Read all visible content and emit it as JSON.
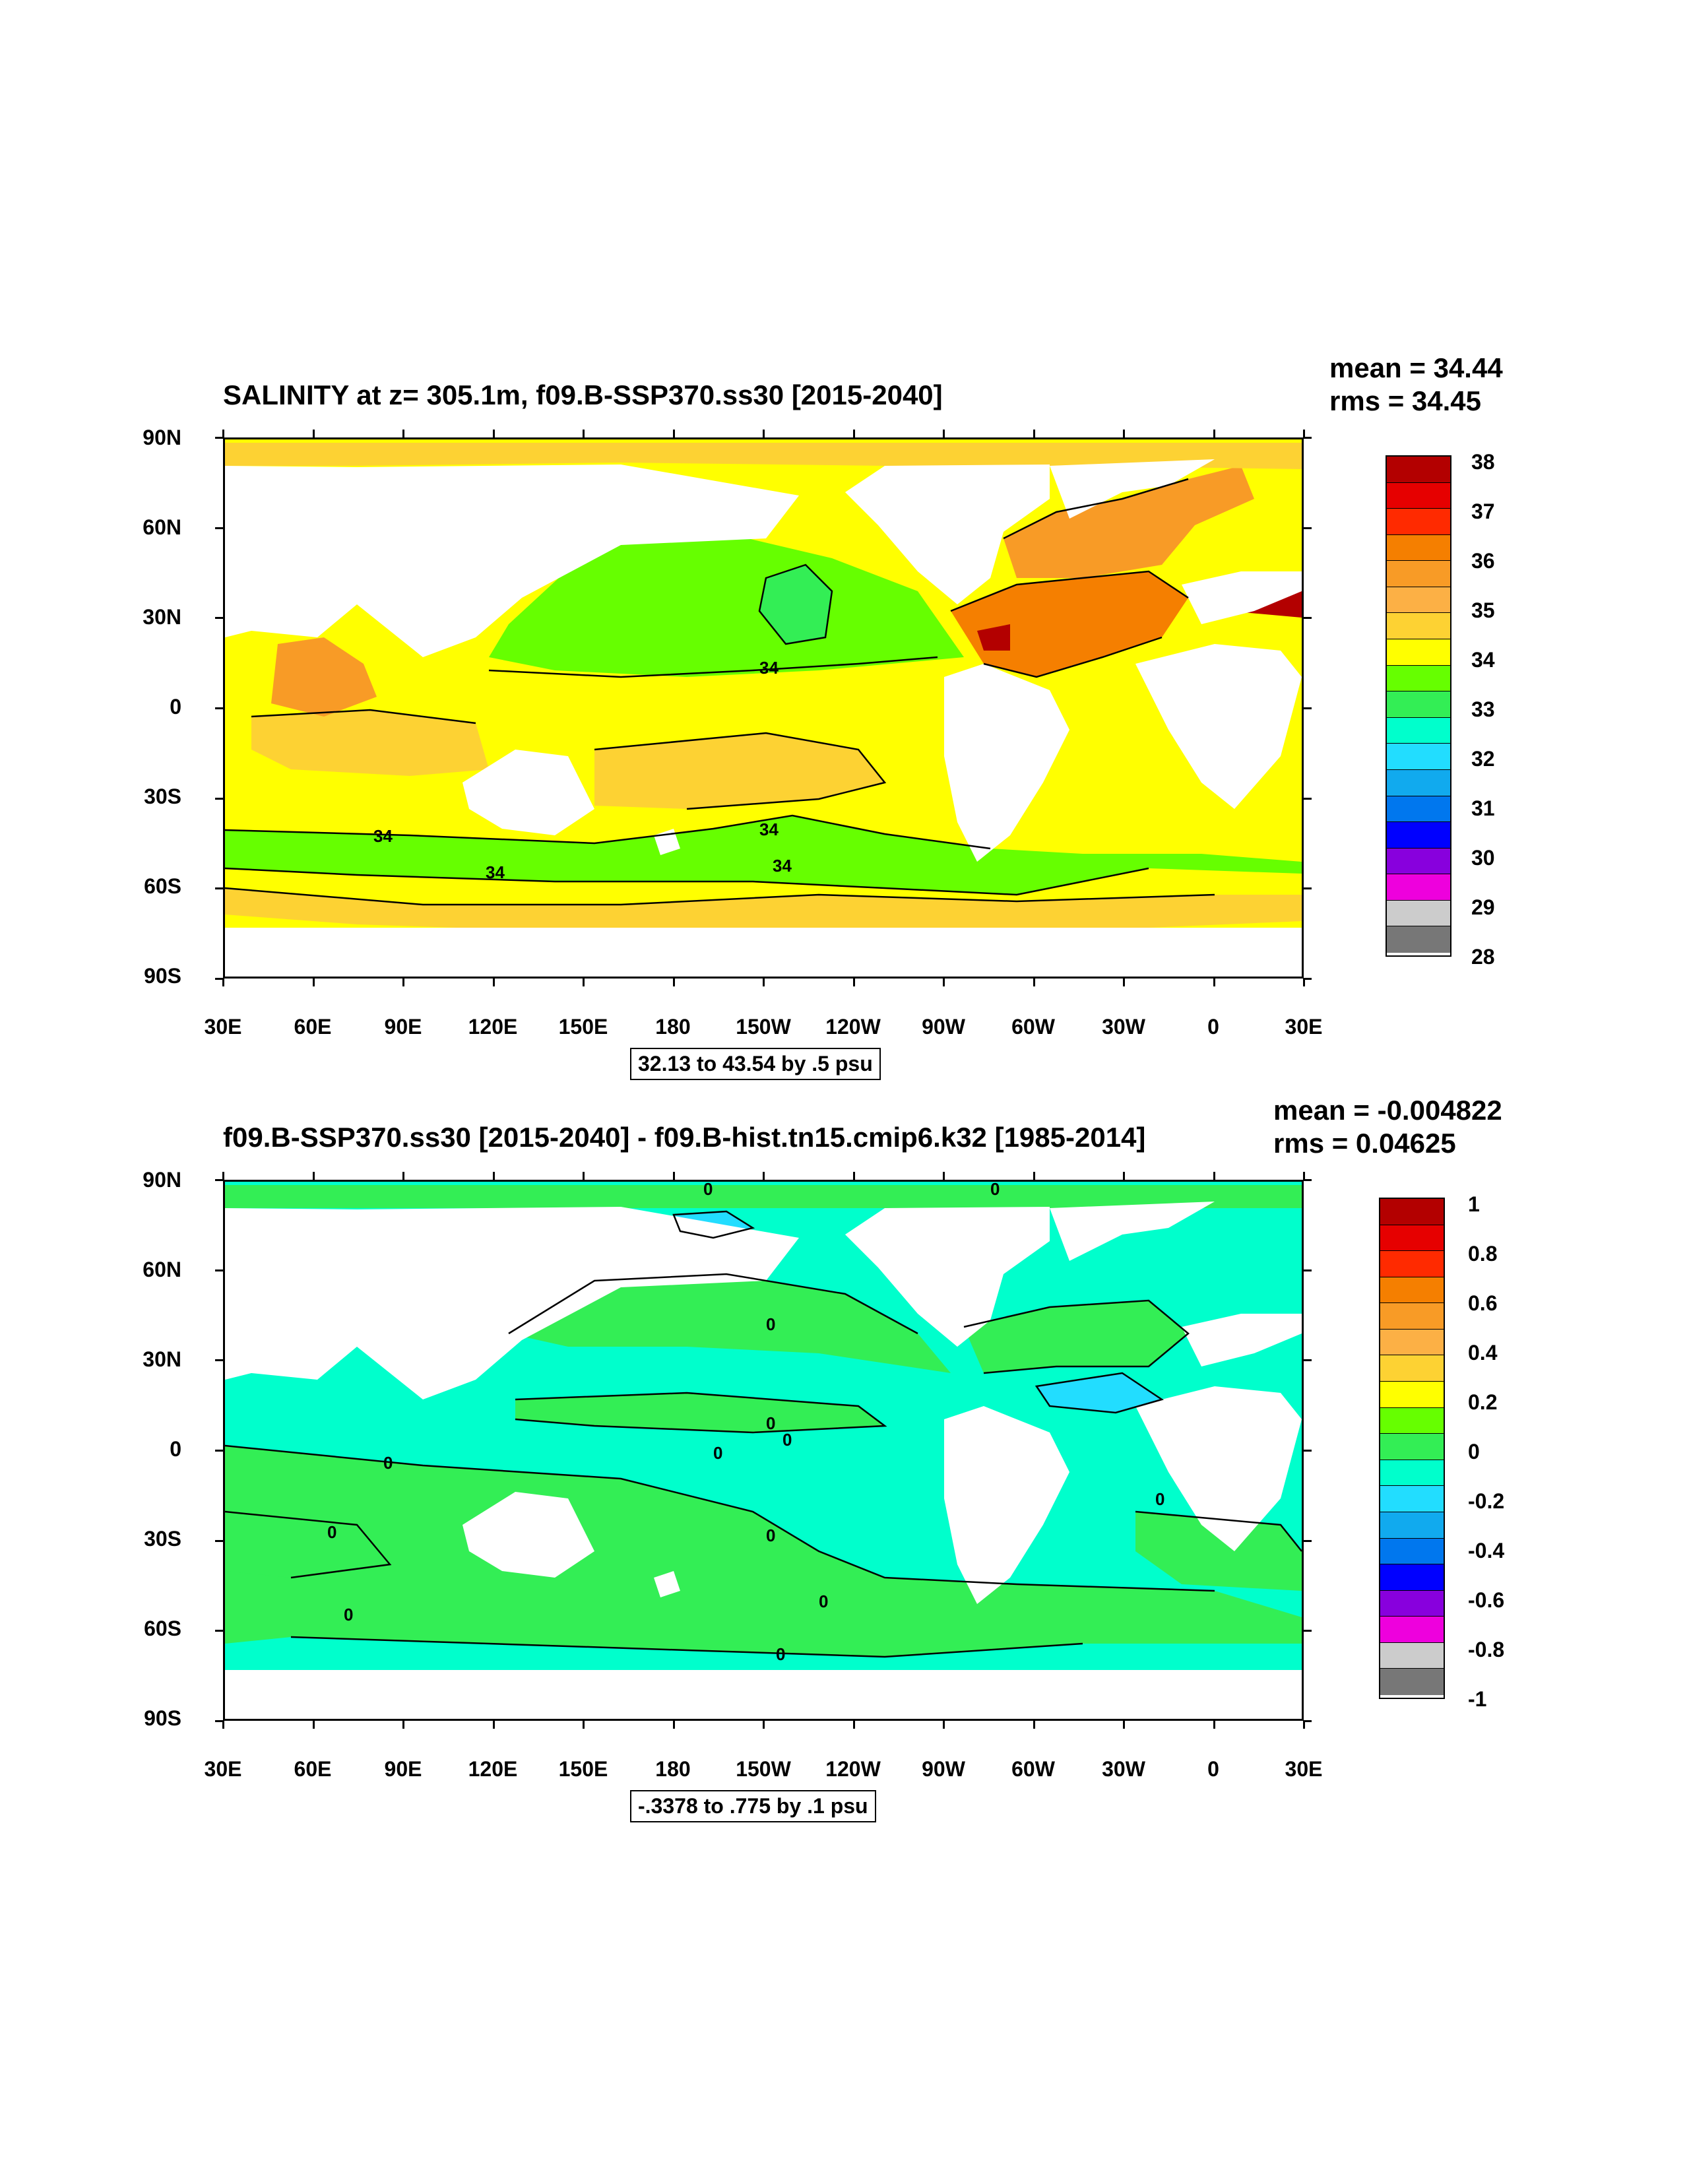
{
  "panels": [
    {
      "id": "top",
      "title": "SALINITY at z= 305.1m, f09.B-SSP370.ss30 [2015-2040]",
      "mean": "mean = 34.44",
      "rms": "rms = 34.45",
      "range_info": "32.13 to 43.54 by .5 psu",
      "contour_labels": [
        "34",
        "34",
        "34",
        "34",
        "34"
      ],
      "colorbar_labels": [
        "38",
        "37",
        "36",
        "35",
        "34",
        "33",
        "32",
        "31",
        "30",
        "29",
        "28"
      ],
      "colorbar_colors": [
        "#b30000",
        "#e60000",
        "#ff2a00",
        "#f57f00",
        "#f89b26",
        "#fcb045",
        "#fdd233",
        "#ffff00",
        "#66ff00",
        "#33ee55",
        "#00ffcc",
        "#22ddff",
        "#11aaee",
        "#0077ee",
        "#0000ff",
        "#8800dd",
        "#ee00dd",
        "#cccccc",
        "#777777"
      ],
      "fill_colors": {
        "ocean_base": "#ffff00",
        "high": "#fdd233",
        "higher": "#f89b26",
        "highest": "#f57f00",
        "peak": "#b30000",
        "low": "#66ff00",
        "lower": "#33ee55",
        "lowest": "#00ffcc",
        "land": "#ffffff"
      }
    },
    {
      "id": "bottom",
      "title": "f09.B-SSP370.ss30 [2015-2040] - f09.B-hist.tn15.cmip6.k32 [1985-2014]",
      "mean": "mean = -0.004822",
      "rms": "rms = 0.04625",
      "range_info": "-.3378 to .775 by .1 psu",
      "contour_labels": [
        "0",
        "0",
        "0",
        "0",
        "0",
        "0",
        "0",
        "0",
        "0",
        "0",
        "0",
        "0",
        "0"
      ],
      "colorbar_labels": [
        "1",
        "0.8",
        "0.6",
        "0.4",
        "0.2",
        "0",
        "-0.2",
        "-0.4",
        "-0.6",
        "-0.8",
        "-1"
      ],
      "colorbar_colors": [
        "#b30000",
        "#e60000",
        "#ff2a00",
        "#f57f00",
        "#f89b26",
        "#fcb045",
        "#fdd233",
        "#ffff00",
        "#66ff00",
        "#33ee55",
        "#00ffcc",
        "#22ddff",
        "#11aaee",
        "#0077ee",
        "#0000ff",
        "#8800dd",
        "#ee00dd",
        "#cccccc",
        "#777777"
      ],
      "fill_colors": {
        "positive": "#33ee55",
        "negative": "#00ffcc",
        "negative_strong": "#22ddff",
        "land": "#ffffff"
      }
    }
  ],
  "axes": {
    "y_ticks": [
      "90N",
      "60N",
      "30N",
      "0",
      "30S",
      "60S",
      "90S"
    ],
    "x_ticks": [
      "30E",
      "60E",
      "90E",
      "120E",
      "150E",
      "180",
      "150W",
      "120W",
      "90W",
      "60W",
      "30W",
      "0",
      "30E"
    ]
  }
}
